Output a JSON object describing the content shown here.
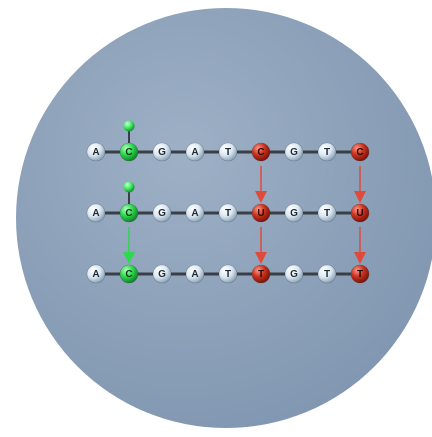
{
  "background_color": "#8ea2ba",
  "colors": {
    "default_base": "#dbe7f0",
    "methylated_base": "#2fd94f",
    "converted_base": "#c0301f",
    "methyl_group": "#3ee862",
    "backbone": "#3a3f46",
    "default_arrow": "#e04a3a",
    "methyl_arrow": "#2fd94f"
  },
  "rows": [
    {
      "bases": [
        {
          "label": "A",
          "state": "default"
        },
        {
          "label": "C",
          "state": "methylated"
        },
        {
          "label": "G",
          "state": "default"
        },
        {
          "label": "A",
          "state": "default"
        },
        {
          "label": "T",
          "state": "default"
        },
        {
          "label": "C",
          "state": "converted"
        },
        {
          "label": "G",
          "state": "default"
        },
        {
          "label": "T",
          "state": "default"
        },
        {
          "label": "C",
          "state": "converted"
        }
      ]
    },
    {
      "bases": [
        {
          "label": "A",
          "state": "default"
        },
        {
          "label": "C",
          "state": "methylated"
        },
        {
          "label": "G",
          "state": "default"
        },
        {
          "label": "A",
          "state": "default"
        },
        {
          "label": "T",
          "state": "default"
        },
        {
          "label": "U",
          "state": "converted"
        },
        {
          "label": "G",
          "state": "default"
        },
        {
          "label": "T",
          "state": "default"
        },
        {
          "label": "U",
          "state": "converted"
        }
      ]
    },
    {
      "bases": [
        {
          "label": "A",
          "state": "default"
        },
        {
          "label": "C",
          "state": "methylated"
        },
        {
          "label": "G",
          "state": "default"
        },
        {
          "label": "A",
          "state": "default"
        },
        {
          "label": "T",
          "state": "default"
        },
        {
          "label": "T",
          "state": "converted"
        },
        {
          "label": "G",
          "state": "default"
        },
        {
          "label": "T",
          "state": "default"
        },
        {
          "label": "T",
          "state": "converted"
        }
      ]
    }
  ],
  "methyl_marks": [
    {
      "row": 0,
      "base": 1
    },
    {
      "row": 1,
      "base": 1
    }
  ],
  "arrows": [
    {
      "from_row": 0,
      "to_row": 1,
      "base": 5,
      "kind": "default"
    },
    {
      "from_row": 0,
      "to_row": 1,
      "base": 8,
      "kind": "default"
    },
    {
      "from_row": 1,
      "to_row": 2,
      "base": 1,
      "kind": "methyl"
    },
    {
      "from_row": 1,
      "to_row": 2,
      "base": 5,
      "kind": "default"
    },
    {
      "from_row": 1,
      "to_row": 2,
      "base": 8,
      "kind": "default"
    }
  ]
}
